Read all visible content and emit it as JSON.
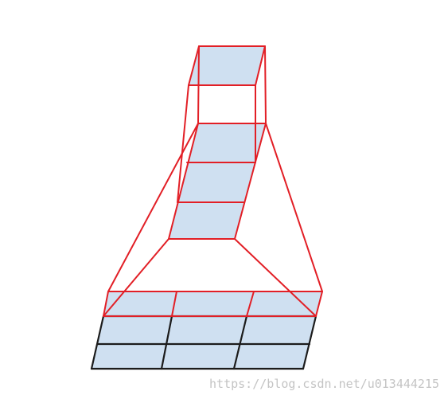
{
  "watermark": {
    "text": "https://blog.csdn.net/u013444215"
  },
  "colors": {
    "cell_fill": "#cfe0f1",
    "receptive_field_outline": "#e21f26",
    "grid_outline": "#1c1c1c",
    "watermark": "#c4c4c4"
  },
  "layers": {
    "bottom_grid": {
      "rows": 3,
      "cols": 3,
      "highlighted_rows": 1
    },
    "middle_column": {
      "cells": 3
    },
    "top_cell": {
      "cells": 1
    }
  }
}
